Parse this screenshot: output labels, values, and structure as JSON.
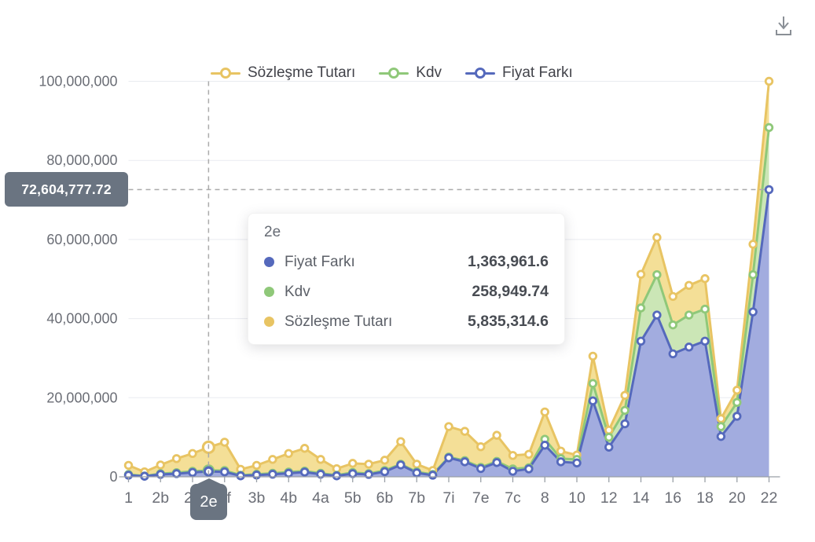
{
  "page": {
    "background": "#ffffff"
  },
  "toolbar": {
    "download_icon": "download-tray-arrow"
  },
  "legend": {
    "items": [
      {
        "label": "Sözleşme Tutarı",
        "color": "#E8C463"
      },
      {
        "label": "Kdv",
        "color": "#8FC879"
      },
      {
        "label": "Fiyat Farkı",
        "color": "#5569BC"
      }
    ]
  },
  "tooltip": {
    "title": "2e",
    "rows": [
      {
        "name": "Fiyat Farkı",
        "value": "1,363,961.6",
        "color": "#5569BC"
      },
      {
        "name": "Kdv",
        "value": "258,949.74",
        "color": "#8FC879"
      },
      {
        "name": "Sözleşme Tutarı",
        "value": "5,835,314.6",
        "color": "#E8C463"
      }
    ]
  },
  "chart_data": {
    "type": "area",
    "stacked": true,
    "title": "",
    "xlabel": "",
    "ylabel": "",
    "ylim": [
      0,
      100000000
    ],
    "grid": true,
    "grid_color": "#e9ebf0",
    "axis_color": "#9aa0a8",
    "label_color": "#6b6e76",
    "legend_position": "top-center",
    "categories": [
      "1",
      "",
      "2b",
      "",
      "2d",
      "2e",
      "2f",
      "",
      "3b",
      "",
      "4b",
      "",
      "4a",
      "",
      "5b",
      "",
      "6b",
      "",
      "7b",
      "",
      "7i",
      "",
      "7e",
      "",
      "7c",
      "",
      "8",
      "",
      "10",
      "",
      "12",
      "",
      "14",
      "",
      "16",
      "",
      "18",
      "",
      "20",
      "",
      "22"
    ],
    "y_axis": {
      "range": [
        0,
        100000000
      ],
      "ticks": [
        {
          "value": 0,
          "label": "0"
        },
        {
          "value": 20000000,
          "label": "20,000,000"
        },
        {
          "value": 40000000,
          "label": "40,000,000"
        },
        {
          "value": 60000000,
          "label": "60,000,000"
        },
        {
          "value": 80000000,
          "label": "80,000,000"
        },
        {
          "value": 100000000,
          "label": "100,000,000"
        }
      ]
    },
    "series": [
      {
        "name": "Fiyat Farkı",
        "key": "fiyat-farki",
        "color": "#5569BC",
        "area_color": "#A2ACDF",
        "values": [
          400000,
          150000,
          600000,
          800000,
          1100000,
          1363961.6,
          1250000,
          250000,
          450000,
          650000,
          900000,
          1200000,
          650000,
          250000,
          800000,
          600000,
          1300000,
          3000000,
          1000000,
          400000,
          4800000,
          3800000,
          2100000,
          3600000,
          1400000,
          2000000,
          8000000,
          3800000,
          3500000,
          19200000,
          7500000,
          13400000,
          34300000,
          40900000,
          31100000,
          32800000,
          34300000,
          10200000,
          15300000,
          41700000,
          72604777.72
        ]
      },
      {
        "name": "Kdv",
        "key": "kdv",
        "color": "#8FC879",
        "area_color": "#CBE6B6",
        "values": [
          200000,
          50000,
          200000,
          250000,
          300000,
          258949.74,
          350000,
          150000,
          200000,
          250000,
          300000,
          250000,
          250000,
          150000,
          300000,
          200000,
          300000,
          200000,
          250000,
          200000,
          200000,
          300000,
          300000,
          300000,
          600000,
          300000,
          1500000,
          800000,
          900000,
          4400000,
          2500000,
          3400000,
          8400000,
          10200000,
          7300000,
          8100000,
          8100000,
          2500000,
          3500000,
          9400000,
          15700000
        ]
      },
      {
        "name": "Sözleşme Tutarı",
        "key": "sozlesme-tutari",
        "color": "#E8C463",
        "area_color": "#F4DF97",
        "values": [
          2300000,
          1050000,
          2200000,
          3550000,
          4500000,
          5835314.6,
          7150000,
          1500000,
          2250000,
          3500000,
          4700000,
          5750000,
          3500000,
          1650000,
          2300000,
          2400000,
          2600000,
          5700000,
          1950000,
          1000000,
          7700000,
          7400000,
          5200000,
          6600000,
          3400000,
          3400000,
          6900000,
          1900000,
          1100000,
          6900000,
          1800000,
          3800000,
          8500000,
          9400000,
          7200000,
          7500000,
          7700000,
          2000000,
          3100000,
          7700000,
          11700000
        ]
      }
    ],
    "crosshair": {
      "x_index": 5,
      "x_label": "2e",
      "y_value": 72604777.72,
      "y_label": "72,604,777.72",
      "line_color": "#ababab"
    }
  }
}
